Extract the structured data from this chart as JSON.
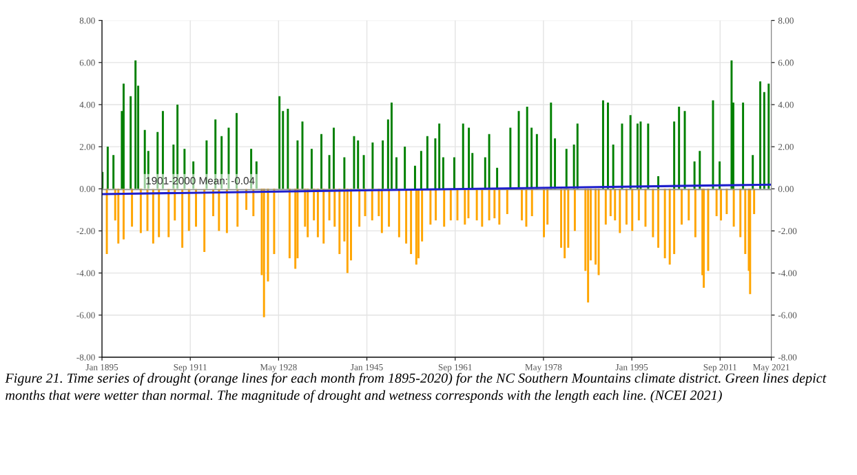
{
  "chart_data": {
    "type": "bar",
    "xlim": [
      "1895-01",
      "2021-05"
    ],
    "xticks": [
      {
        "value": "1895-01",
        "label": "Jan 1895"
      },
      {
        "value": "1911-09",
        "label": "Sep 1911"
      },
      {
        "value": "1928-05",
        "label": "May 1928"
      },
      {
        "value": "1945-01",
        "label": "Jan 1945"
      },
      {
        "value": "1961-09",
        "label": "Sep 1961"
      },
      {
        "value": "1978-05",
        "label": "May 1978"
      },
      {
        "value": "1995-01",
        "label": "Jan 1995"
      },
      {
        "value": "2011-09",
        "label": "Sep 2011"
      },
      {
        "value": "2021-05",
        "label": "May 2021"
      }
    ],
    "ylim": [
      -8,
      8
    ],
    "yticks": [
      {
        "value": -8,
        "label": "-8.00"
      },
      {
        "value": -6,
        "label": "-6.00"
      },
      {
        "value": -4,
        "label": "-4.00"
      },
      {
        "value": -2,
        "label": "-2.00"
      },
      {
        "value": 0,
        "label": "0.00"
      },
      {
        "value": 2,
        "label": "2.00"
      },
      {
        "value": 4,
        "label": "4.00"
      },
      {
        "value": 6,
        "label": "6.00"
      },
      {
        "value": 8,
        "label": "8.00"
      }
    ],
    "y2lim": [
      -8,
      8
    ],
    "y2ticks": [
      {
        "value": -8,
        "label": "-8.00"
      },
      {
        "value": -6,
        "label": "-6.00"
      },
      {
        "value": -4,
        "label": "-4.00"
      },
      {
        "value": -2,
        "label": "-2.00"
      },
      {
        "value": 0,
        "label": "0.00"
      },
      {
        "value": 2,
        "label": "2.00"
      },
      {
        "value": 4,
        "label": "4.00"
      },
      {
        "value": 6,
        "label": "6.00"
      },
      {
        "value": 8,
        "label": "8.00"
      }
    ],
    "grid": true,
    "series": [
      {
        "color": "#008000",
        "x": [
          "1895-02",
          "1896-02",
          "1897-03",
          "1898-10",
          "1899-02",
          "1900-06",
          "1901-05",
          "1901-11",
          "1903-02",
          "1903-10",
          "1905-07",
          "1906-07",
          "1908-07",
          "1909-04",
          "1910-08",
          "1912-04",
          "1914-10",
          "1916-06",
          "1917-08",
          "1918-12",
          "1920-06",
          "1923-03",
          "1924-03",
          "1928-07",
          "1929-03",
          "1930-02",
          "1931-12",
          "1932-11",
          "1934-08",
          "1936-06",
          "1937-12",
          "1938-10",
          "1940-10",
          "1942-08",
          "1943-05",
          "1944-06",
          "1946-02",
          "1948-01",
          "1949-01",
          "1949-09",
          "1950-08",
          "1952-03",
          "1954-02",
          "1955-04",
          "1956-06",
          "1957-12",
          "1958-09",
          "1959-06",
          "1961-07",
          "1963-03",
          "1964-04",
          "1964-12",
          "1967-05",
          "1968-02",
          "1969-08",
          "1972-02",
          "1973-09",
          "1975-04",
          "1976-02",
          "1977-02",
          "1979-10",
          "1980-07",
          "1982-09",
          "1984-02",
          "1984-10",
          "1989-08",
          "1990-07",
          "1991-07",
          "1993-03",
          "1994-10",
          "1996-02",
          "1996-09",
          "1998-02",
          "2000-01",
          "2003-01",
          "2003-12",
          "2005-01",
          "2006-11",
          "2007-11",
          "2010-05",
          "2011-08",
          "2013-11",
          "2014-03",
          "2016-01",
          "2017-11",
          "2019-04",
          "2020-01",
          "2020-11"
        ],
        "values": [
          0.8,
          2.0,
          1.6,
          3.7,
          5.0,
          4.4,
          6.1,
          4.9,
          2.8,
          1.8,
          2.7,
          3.7,
          2.1,
          4.0,
          1.9,
          1.3,
          2.3,
          3.3,
          2.5,
          2.9,
          3.6,
          1.9,
          1.3,
          4.4,
          3.7,
          3.8,
          2.3,
          3.2,
          1.9,
          2.6,
          1.6,
          2.9,
          1.5,
          2.5,
          2.3,
          1.6,
          2.2,
          2.3,
          3.3,
          4.1,
          1.5,
          2.0,
          1.1,
          1.8,
          2.5,
          2.4,
          3.1,
          1.5,
          1.5,
          3.1,
          2.9,
          1.7,
          1.5,
          2.6,
          1.0,
          2.9,
          3.7,
          3.9,
          2.9,
          2.6,
          4.1,
          2.4,
          1.9,
          2.1,
          3.1,
          4.2,
          4.1,
          2.1,
          3.1,
          3.5,
          3.1,
          3.2,
          3.1,
          0.6,
          3.2,
          3.9,
          3.7,
          1.3,
          1.8,
          4.2,
          1.3,
          6.1,
          4.1,
          4.1,
          1.6,
          5.1,
          4.6,
          5.0
        ]
      },
      {
        "color": "#ffa500",
        "x": [
          "1895-12",
          "1897-07",
          "1898-02",
          "1899-02",
          "1900-09",
          "1902-05",
          "1903-08",
          "1904-09",
          "1905-10",
          "1907-08",
          "1908-10",
          "1910-03",
          "1911-06",
          "1912-10",
          "1914-05",
          "1916-01",
          "1917-02",
          "1918-08",
          "1920-08",
          "1922-04",
          "1923-08",
          "1925-03",
          "1925-08",
          "1926-05",
          "1927-07",
          "1930-06",
          "1931-07",
          "1931-12",
          "1933-05",
          "1933-11",
          "1935-01",
          "1935-10",
          "1936-11",
          "1937-12",
          "1938-12",
          "1939-11",
          "1940-10",
          "1941-05",
          "1942-01",
          "1943-08",
          "1944-09",
          "1946-01",
          "1947-04",
          "1947-11",
          "1949-03",
          "1951-02",
          "1952-06",
          "1953-05",
          "1954-05",
          "1954-10",
          "1955-06",
          "1957-01",
          "1958-01",
          "1959-08",
          "1960-11",
          "1962-02",
          "1963-07",
          "1964-03",
          "1965-10",
          "1966-10",
          "1968-02",
          "1969-02",
          "1970-01",
          "1971-07",
          "1974-04",
          "1975-02",
          "1976-03",
          "1978-06",
          "1979-02",
          "1981-09",
          "1982-05",
          "1983-01",
          "1984-04",
          "1986-04",
          "1986-10",
          "1987-04",
          "1988-03",
          "1988-10",
          "1990-02",
          "1991-01",
          "1991-11",
          "1992-10",
          "1994-01",
          "1995-02",
          "1996-05",
          "1997-08",
          "1999-01",
          "2000-01",
          "2001-04",
          "2002-03",
          "2003-01",
          "2004-06",
          "2005-10",
          "2007-01",
          "2008-05",
          "2008-08",
          "2009-06",
          "2011-01",
          "2011-11",
          "2012-12",
          "2014-04",
          "2015-07",
          "2016-06",
          "2017-02",
          "2017-05",
          "2018-02"
        ],
        "values": [
          -3.1,
          -1.5,
          -2.6,
          -2.4,
          -1.8,
          -2.1,
          -2.0,
          -2.6,
          -2.3,
          -2.3,
          -1.5,
          -2.8,
          -2.0,
          -1.8,
          -3.0,
          -1.3,
          -2.0,
          -2.1,
          -1.8,
          -1.0,
          -1.3,
          -4.1,
          -6.1,
          -4.4,
          -3.1,
          -3.3,
          -3.8,
          -3.3,
          -1.8,
          -2.3,
          -1.5,
          -2.3,
          -2.6,
          -1.5,
          -1.8,
          -3.1,
          -2.5,
          -4.0,
          -3.4,
          -1.8,
          -1.3,
          -1.5,
          -1.3,
          -2.1,
          -1.8,
          -2.3,
          -2.6,
          -3.1,
          -3.6,
          -3.3,
          -2.5,
          -1.7,
          -1.5,
          -1.8,
          -1.5,
          -1.5,
          -1.7,
          -1.4,
          -1.5,
          -1.8,
          -1.5,
          -1.4,
          -1.7,
          -1.2,
          -1.5,
          -1.8,
          -1.3,
          -2.3,
          -1.7,
          -2.8,
          -3.3,
          -2.8,
          -2.0,
          -3.9,
          -5.4,
          -3.4,
          -3.6,
          -4.1,
          -1.7,
          -1.3,
          -1.5,
          -2.1,
          -1.7,
          -2.0,
          -1.5,
          -1.8,
          -2.3,
          -2.8,
          -3.3,
          -3.6,
          -3.1,
          -1.7,
          -1.5,
          -2.3,
          -4.1,
          -4.7,
          -3.9,
          -1.3,
          -1.5,
          -1.2,
          -1.8,
          -2.3,
          -3.1,
          -3.9,
          -5.0,
          -1.2
        ]
      },
      {
        "type": "line",
        "color": "#1f1fcc",
        "x": [
          "1895-01",
          "2021-05"
        ],
        "values": [
          -0.25,
          0.2
        ]
      }
    ],
    "ref_lines": [
      {
        "axis": "y",
        "value": -0.04,
        "label": "1901-2000 Mean: -0.04",
        "color": "#888888"
      }
    ],
    "annotations": [
      "Figure 21. Time series of drought (orange lines for each month from 1895-2020) for the NC Southern Mountains climate district. Green lines depict months that were wetter than normal. The magnitude of drought and wetness corresponds with the length each line. (NCEI 2021)"
    ]
  }
}
